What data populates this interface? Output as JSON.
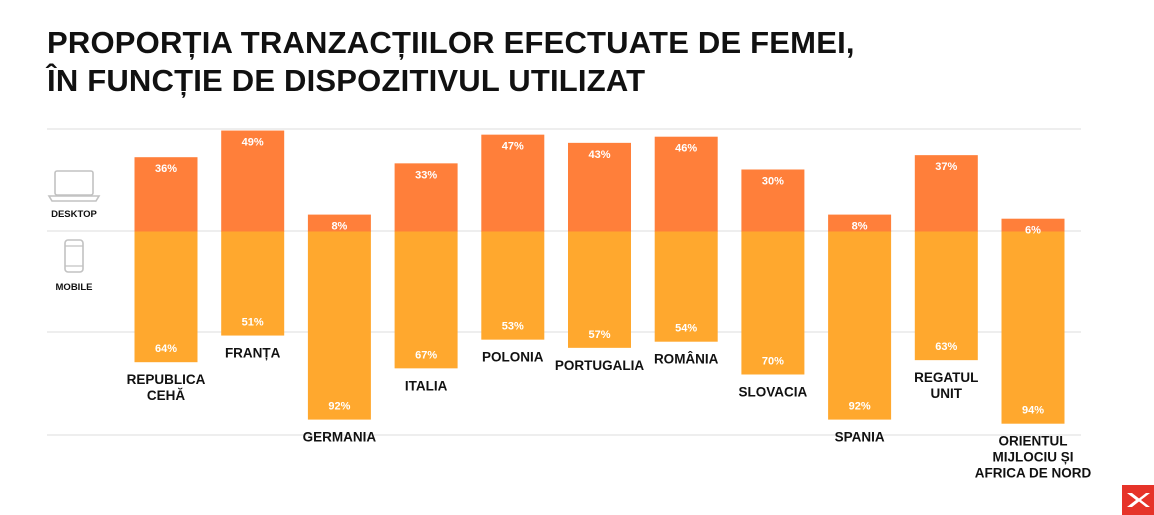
{
  "title_lines": [
    "PROPORȚIA TRANZACȚIILOR EFECTUATE DE FEMEI,",
    "ÎN FUNCȚIE DE DISPOZITIVUL UTILIZAT"
  ],
  "legend": {
    "desktop_label": "DESKTOP",
    "mobile_label": "MOBILE"
  },
  "colors": {
    "desktop": "#FF7F3A",
    "mobile": "#FFA82E",
    "grid": "#DDDDDD",
    "text": "#111111",
    "logo_bg": "#E63329"
  },
  "icons": {
    "desktop": "laptop-icon",
    "mobile": "smartphone-icon",
    "logo": "brand-logo-icon"
  },
  "chart_data": {
    "type": "bar",
    "stacked": true,
    "units": "%",
    "categories": [
      [
        "REPUBLICA",
        "CEHĂ"
      ],
      [
        "FRANȚA"
      ],
      [
        "GERMANIA"
      ],
      [
        "ITALIA"
      ],
      [
        "POLONIA"
      ],
      [
        "PORTUGALIA"
      ],
      [
        "ROMÂNIA"
      ],
      [
        "SLOVACIA"
      ],
      [
        "SPANIA"
      ],
      [
        "REGATUL",
        "UNIT"
      ],
      [
        "ORIENTUL",
        "MIJLOCIU ȘI",
        "AFRICA DE NORD"
      ]
    ],
    "series": [
      {
        "name": "MOBILE",
        "values": [
          64,
          51,
          92,
          67,
          53,
          57,
          54,
          70,
          92,
          63,
          94
        ],
        "labels": [
          "64%",
          "51%",
          "92%",
          "67%",
          "53%",
          "57%",
          "54%",
          "70%",
          "92%",
          "63%",
          "94%"
        ]
      },
      {
        "name": "DESKTOP",
        "values": [
          36,
          49,
          8,
          33,
          47,
          43,
          46,
          30,
          8,
          37,
          6
        ],
        "labels": [
          "36%",
          "49%",
          "8%",
          "33%",
          "47%",
          "43%",
          "46%",
          "30%",
          "8%",
          "37%",
          "6%"
        ]
      }
    ],
    "grid": true,
    "legend_position": "left"
  }
}
